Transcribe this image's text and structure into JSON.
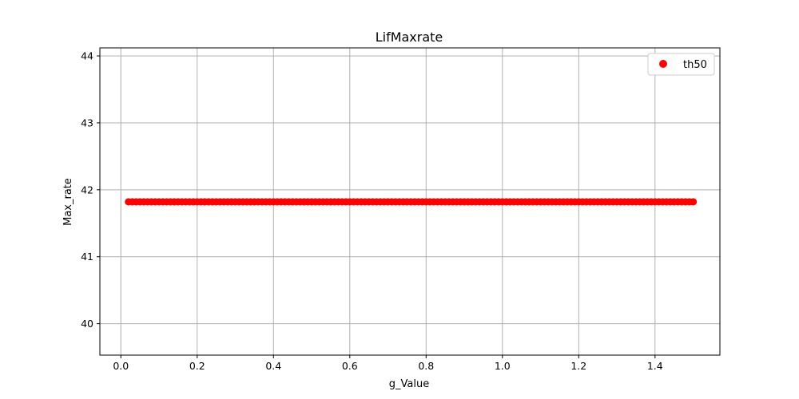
{
  "chart_data": {
    "type": "scatter",
    "title": "LifMaxrate",
    "xlabel": "g_Value",
    "ylabel": "Max_rate",
    "xlim": [
      -0.055,
      1.57
    ],
    "ylim": [
      39.53,
      44.12
    ],
    "xticks": [
      "0.0",
      "0.2",
      "0.4",
      "0.6",
      "0.8",
      "1.0",
      "1.2",
      "1.4"
    ],
    "yticks": [
      "40",
      "41",
      "42",
      "43",
      "44"
    ],
    "grid": true,
    "legend_position": "top-right",
    "series": [
      {
        "name": "th50",
        "color": "#ff0000",
        "marker": "circle",
        "x_start": 0.02,
        "x_end": 1.5,
        "x_step": 0.01,
        "y_constant": 41.82
      }
    ]
  }
}
